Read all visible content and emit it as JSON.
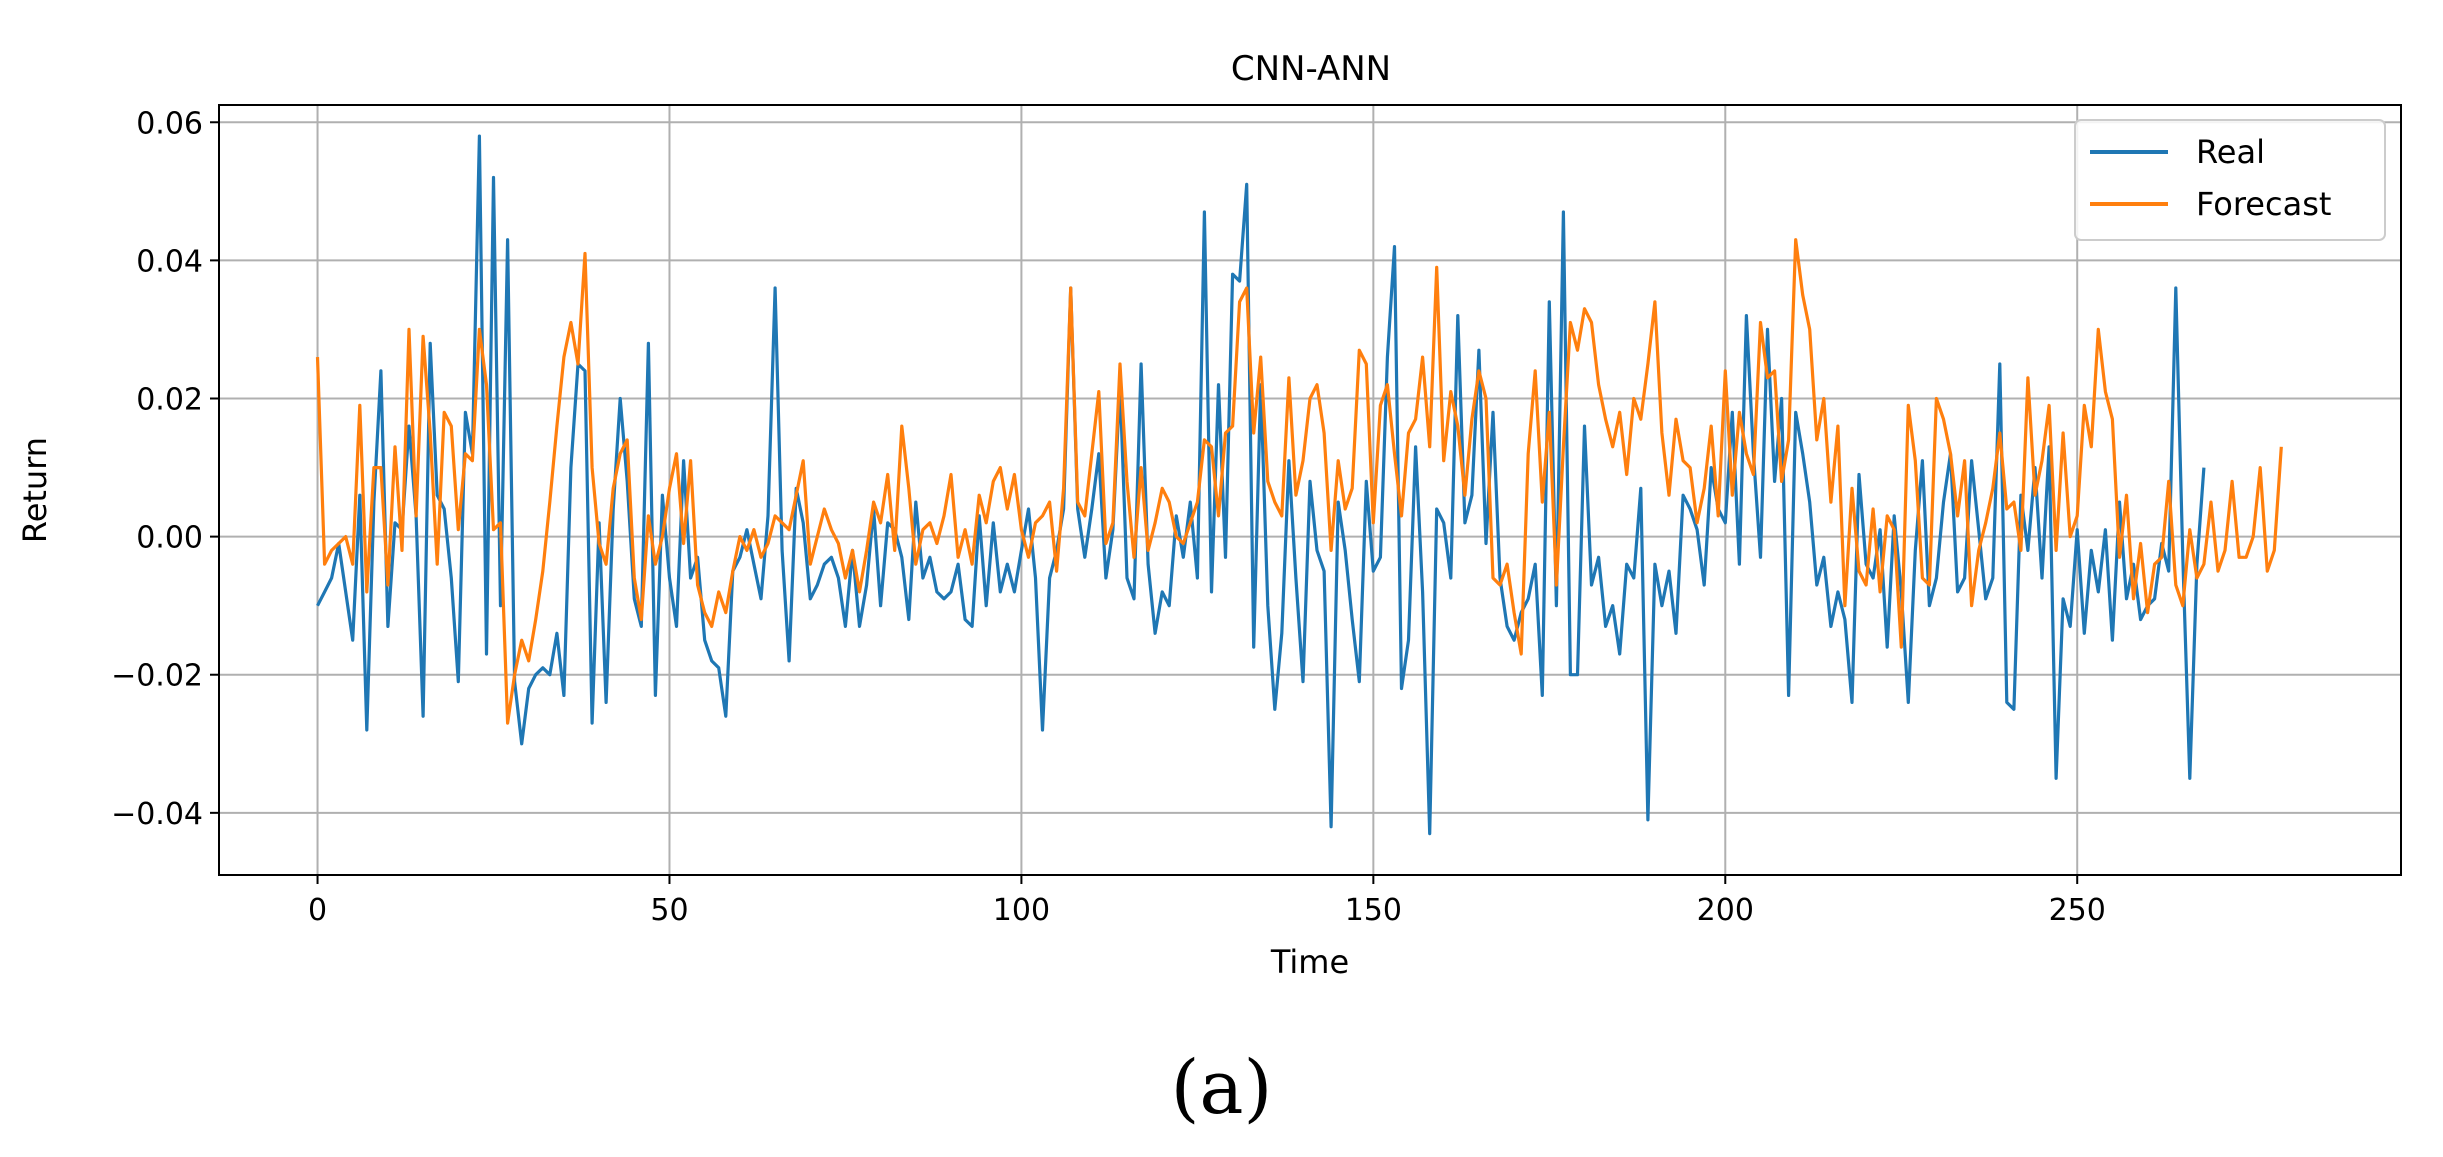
{
  "panel_label": "(a)",
  "chart_data": {
    "type": "line",
    "title": "CNN-ANN",
    "xlabel": "Time",
    "ylabel": "Return",
    "xlim": [
      -14,
      296
    ],
    "ylim": [
      -0.049,
      0.0625
    ],
    "xticks": [
      0,
      50,
      100,
      150,
      200,
      250
    ],
    "yticks": [
      -0.04,
      -0.02,
      0.0,
      0.02,
      0.04,
      0.06
    ],
    "ytick_labels": [
      "−0.04",
      "−0.02",
      "0.00",
      "0.02",
      "0.04",
      "0.06"
    ],
    "xtick_labels": [
      "0",
      "50",
      "100",
      "150",
      "200",
      "250"
    ],
    "grid": true,
    "legend": "top-right",
    "series": [
      {
        "name": "Real",
        "color": "#1f77b4",
        "values": [
          -0.01,
          -0.008,
          -0.006,
          -0.001,
          -0.008,
          -0.015,
          0.006,
          -0.028,
          0.005,
          0.024,
          -0.013,
          0.002,
          0.001,
          0.016,
          0.003,
          -0.026,
          0.028,
          0.006,
          0.004,
          -0.006,
          -0.021,
          0.018,
          0.012,
          0.058,
          -0.017,
          0.052,
          -0.01,
          0.043,
          -0.021,
          -0.03,
          -0.022,
          -0.02,
          -0.019,
          -0.02,
          -0.014,
          -0.023,
          0.01,
          0.025,
          0.024,
          -0.027,
          0.002,
          -0.024,
          0.004,
          0.02,
          0.008,
          -0.009,
          -0.013,
          0.028,
          -0.023,
          0.006,
          -0.006,
          -0.013,
          0.011,
          -0.006,
          -0.003,
          -0.015,
          -0.018,
          -0.019,
          -0.026,
          -0.005,
          -0.003,
          0.001,
          -0.004,
          -0.009,
          0.003,
          0.036,
          -0.002,
          -0.018,
          0.007,
          0.002,
          -0.009,
          -0.007,
          -0.004,
          -0.003,
          -0.006,
          -0.013,
          -0.002,
          -0.013,
          -0.007,
          0.004,
          -0.01,
          0.002,
          0.001,
          -0.003,
          -0.012,
          0.005,
          -0.006,
          -0.003,
          -0.008,
          -0.009,
          -0.008,
          -0.004,
          -0.012,
          -0.013,
          0.003,
          -0.01,
          0.002,
          -0.008,
          -0.004,
          -0.008,
          -0.002,
          0.004,
          -0.006,
          -0.028,
          -0.006,
          -0.002,
          0.004,
          0.036,
          0.004,
          -0.003,
          0.004,
          0.012,
          -0.006,
          0.001,
          0.022,
          -0.006,
          -0.009,
          0.025,
          -0.004,
          -0.014,
          -0.008,
          -0.01,
          0.003,
          -0.003,
          0.005,
          -0.006,
          0.047,
          -0.008,
          0.022,
          -0.003,
          0.038,
          0.037,
          0.051,
          -0.016,
          0.022,
          -0.01,
          -0.025,
          -0.014,
          0.011,
          -0.006,
          -0.021,
          0.008,
          -0.002,
          -0.005,
          -0.042,
          0.005,
          -0.002,
          -0.012,
          -0.021,
          0.008,
          -0.005,
          -0.003,
          0.026,
          0.042,
          -0.022,
          -0.015,
          0.013,
          -0.008,
          -0.043,
          0.004,
          0.002,
          -0.006,
          0.032,
          0.002,
          0.006,
          0.027,
          -0.001,
          0.018,
          -0.006,
          -0.013,
          -0.015,
          -0.011,
          -0.009,
          -0.004,
          -0.023,
          0.034,
          -0.01,
          0.047,
          -0.02,
          -0.02,
          0.016,
          -0.007,
          -0.003,
          -0.013,
          -0.01,
          -0.017,
          -0.004,
          -0.006,
          0.007,
          -0.041,
          -0.004,
          -0.01,
          -0.005,
          -0.014,
          0.006,
          0.004,
          0.001,
          -0.007,
          0.01,
          0.004,
          0.002,
          0.018,
          -0.004,
          0.032,
          0.012,
          -0.003,
          0.03,
          0.008,
          0.02,
          -0.023,
          0.018,
          0.012,
          0.005,
          -0.007,
          -0.003,
          -0.013,
          -0.008,
          -0.012,
          -0.024,
          0.009,
          -0.004,
          -0.006,
          0.001,
          -0.016,
          0.003,
          -0.008,
          -0.024,
          -0.002,
          0.011,
          -0.01,
          -0.006,
          0.005,
          0.012,
          -0.008,
          -0.006,
          0.011,
          0.001,
          -0.009,
          -0.006,
          0.025,
          -0.024,
          -0.025,
          0.006,
          -0.002,
          0.01,
          -0.006,
          0.013,
          -0.035,
          -0.009,
          -0.013,
          0.001,
          -0.014,
          -0.002,
          -0.008,
          0.001,
          -0.015,
          0.005,
          -0.009,
          -0.004,
          -0.012,
          -0.01,
          -0.009,
          -0.001,
          -0.005,
          0.036,
          -0.003,
          -0.035,
          -0.004,
          0.01
        ]
      },
      {
        "name": "Forecast",
        "color": "#ff7f0e",
        "values": [
          0.026,
          -0.004,
          -0.002,
          -0.001,
          0.0,
          -0.004,
          0.019,
          -0.008,
          0.01,
          0.01,
          -0.007,
          0.013,
          -0.002,
          0.03,
          0.003,
          0.029,
          0.015,
          -0.004,
          0.018,
          0.016,
          0.001,
          0.012,
          0.011,
          0.03,
          0.022,
          0.001,
          0.002,
          -0.027,
          -0.02,
          -0.015,
          -0.018,
          -0.012,
          -0.005,
          0.005,
          0.016,
          0.026,
          0.031,
          0.025,
          0.041,
          0.01,
          -0.001,
          -0.004,
          0.007,
          0.012,
          0.014,
          -0.006,
          -0.012,
          0.003,
          -0.004,
          0.0,
          0.007,
          0.012,
          -0.001,
          0.011,
          -0.007,
          -0.011,
          -0.013,
          -0.008,
          -0.011,
          -0.005,
          0.0,
          -0.002,
          0.001,
          -0.003,
          -0.001,
          0.003,
          0.002,
          0.001,
          0.006,
          0.011,
          -0.004,
          0.0,
          0.004,
          0.001,
          -0.001,
          -0.006,
          -0.002,
          -0.008,
          -0.002,
          0.005,
          0.002,
          0.009,
          -0.002,
          0.016,
          0.007,
          -0.004,
          0.001,
          0.002,
          -0.001,
          0.003,
          0.009,
          -0.003,
          0.001,
          -0.004,
          0.006,
          0.002,
          0.008,
          0.01,
          0.004,
          0.009,
          0.001,
          -0.003,
          0.002,
          0.003,
          0.005,
          -0.005,
          0.007,
          0.036,
          0.005,
          0.003,
          0.012,
          0.021,
          -0.001,
          0.002,
          0.025,
          0.008,
          -0.003,
          0.01,
          -0.002,
          0.002,
          0.007,
          0.005,
          0.0,
          -0.001,
          0.002,
          0.005,
          0.014,
          0.013,
          0.003,
          0.015,
          0.016,
          0.034,
          0.036,
          0.015,
          0.026,
          0.008,
          0.005,
          0.003,
          0.023,
          0.006,
          0.011,
          0.02,
          0.022,
          0.015,
          -0.002,
          0.011,
          0.004,
          0.007,
          0.027,
          0.025,
          0.002,
          0.019,
          0.022,
          0.012,
          0.003,
          0.015,
          0.017,
          0.026,
          0.013,
          0.039,
          0.011,
          0.021,
          0.016,
          0.006,
          0.017,
          0.024,
          0.02,
          -0.006,
          -0.007,
          -0.004,
          -0.011,
          -0.017,
          0.012,
          0.024,
          0.005,
          0.018,
          -0.007,
          0.013,
          0.031,
          0.027,
          0.033,
          0.031,
          0.022,
          0.017,
          0.013,
          0.018,
          0.009,
          0.02,
          0.017,
          0.025,
          0.034,
          0.015,
          0.006,
          0.017,
          0.011,
          0.01,
          0.002,
          0.007,
          0.016,
          0.003,
          0.024,
          0.006,
          0.018,
          0.012,
          0.009,
          0.031,
          0.023,
          0.024,
          0.008,
          0.014,
          0.043,
          0.035,
          0.03,
          0.014,
          0.02,
          0.005,
          0.016,
          -0.01,
          0.007,
          -0.005,
          -0.007,
          0.004,
          -0.008,
          0.003,
          0.001,
          -0.016,
          0.019,
          0.011,
          -0.006,
          -0.007,
          0.02,
          0.017,
          0.012,
          0.003,
          0.011,
          -0.01,
          -0.002,
          0.002,
          0.007,
          0.015,
          0.004,
          0.005,
          -0.002,
          0.023,
          0.006,
          0.011,
          0.019,
          -0.002,
          0.015,
          0.0,
          0.003,
          0.019,
          0.013,
          0.03,
          0.021,
          0.017,
          -0.003,
          0.006,
          -0.009,
          -0.001,
          -0.011,
          -0.004,
          -0.003,
          0.008,
          -0.007,
          -0.01,
          0.001,
          -0.006,
          -0.004,
          0.005,
          -0.005,
          -0.002,
          0.008,
          -0.003,
          -0.003,
          0.0,
          0.01,
          -0.005,
          -0.002,
          0.013
        ]
      }
    ]
  }
}
